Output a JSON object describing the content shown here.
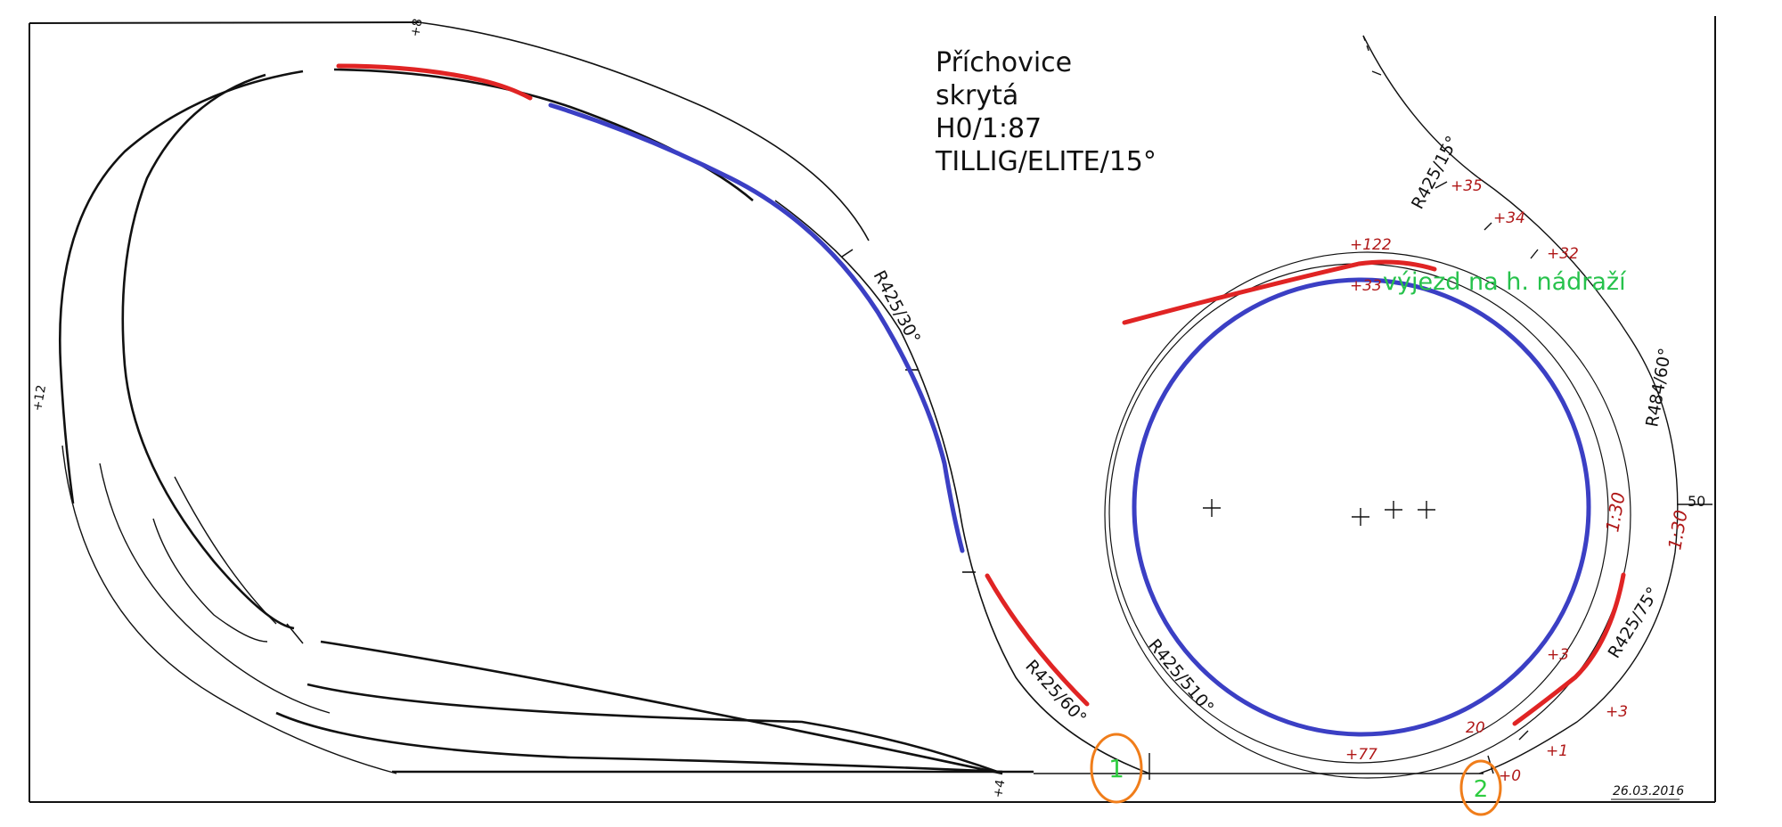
{
  "title_block": {
    "line1": "Příchovice",
    "line2": "skrytá",
    "line3": "H0/1:87",
    "line4": "TILLIG/ELITE/15°"
  },
  "colors": {
    "track": "#111111",
    "red_section": "#e02424",
    "blue_section": "#3b3fc4",
    "marker_circle": "#f07d1a",
    "marker_number": "#2ecc40",
    "annotation_green": "#27c24c",
    "height_marks": "#b01818"
  },
  "annotations": {
    "exit_note": "výjezd na h. nádraží"
  },
  "markers": [
    {
      "label": "1"
    },
    {
      "label": "2"
    }
  ],
  "radius_labels": {
    "r425_30": "R425/30°",
    "r425_60": "R425/60°",
    "r425_510": "R425/510°",
    "r425_75": "R425/75°",
    "r484_60": "R484/60°",
    "r425_15": "R425/15°"
  },
  "heights": {
    "h35": "+35",
    "h34": "+34",
    "h32": "+32",
    "h122": "+122",
    "h33": "+33",
    "h77": "+77",
    "h20": "20",
    "h0": "+0",
    "h1": "+1",
    "h3a": "+3",
    "h3b": "+3",
    "h50": "50",
    "grade1": "1:30",
    "grade2": "1:30",
    "h8": "+8",
    "h4": "+4",
    "h12": "+12"
  },
  "signature": "26.03.2016"
}
